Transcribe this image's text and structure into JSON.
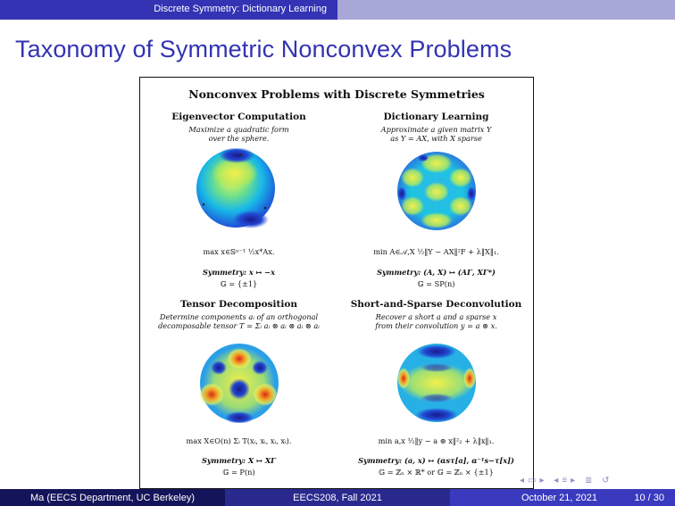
{
  "header": {
    "section": "Discrete Symmetry: Dictionary Learning"
  },
  "slide": {
    "title": "Taxonomy of Symmetric Nonconvex Problems"
  },
  "figure": {
    "title": "Nonconvex Problems with Discrete Symmetries",
    "cells": [
      {
        "head": "Eigenvector Computation",
        "desc1": "Maximize a quadratic form",
        "desc2": "over the sphere.",
        "formula": "max x∈𝕊ⁿ⁻¹ ½x*Ax.",
        "symmetry": "Symmetry: x ↦ −x",
        "group": "𝔾 = {±1}"
      },
      {
        "head": "Dictionary Learning",
        "desc1": "Approximate a given matrix Y",
        "desc2": "as Y = AX, with X sparse",
        "formula": "min A∈𝒜,X ½‖Y − AX‖²F + λ‖X‖₁.",
        "symmetry": "Symmetry: (A, X) ↦ (AΓ, XΓ*)",
        "group": "𝔾 = SP(n)"
      },
      {
        "head": "Tensor Decomposition",
        "desc1": "Determine components aᵢ of an orthogonal",
        "desc2": "decomposable tensor T = Σᵢ aᵢ ⊗ aᵢ ⊗ aᵢ ⊗ aᵢ",
        "formula": "max X∈O(n) Σᵢ T(xᵢ, xᵢ, xᵢ, xᵢ).",
        "symmetry": "Symmetry: X ↦ XΓ",
        "group": "𝔾 = P(n)"
      },
      {
        "head": "Short-and-Sparse Deconvolution",
        "desc1": "Recover a short a and a sparse x",
        "desc2": "from their convolution y = a ⊛ x.",
        "formula": "min a,x ½‖y − a ⊛ x‖²₂ + λ‖x‖₁.",
        "symmetry": "Symmetry: (a, x) ↦ (αsτ[a], α⁻¹s−τ[x])",
        "group": "𝔾 = ℤₙ × ℝ* or 𝔾 = ℤₙ × {±1}"
      }
    ]
  },
  "footer": {
    "author": "Ma  (EECS Department, UC Berkeley)",
    "course": "EECS208, Fall 2021",
    "date": "October 21, 2021",
    "page": "10 / 30"
  },
  "colors": {
    "beamer_blue": "#3333b3",
    "footer_dark": "#14145a"
  }
}
